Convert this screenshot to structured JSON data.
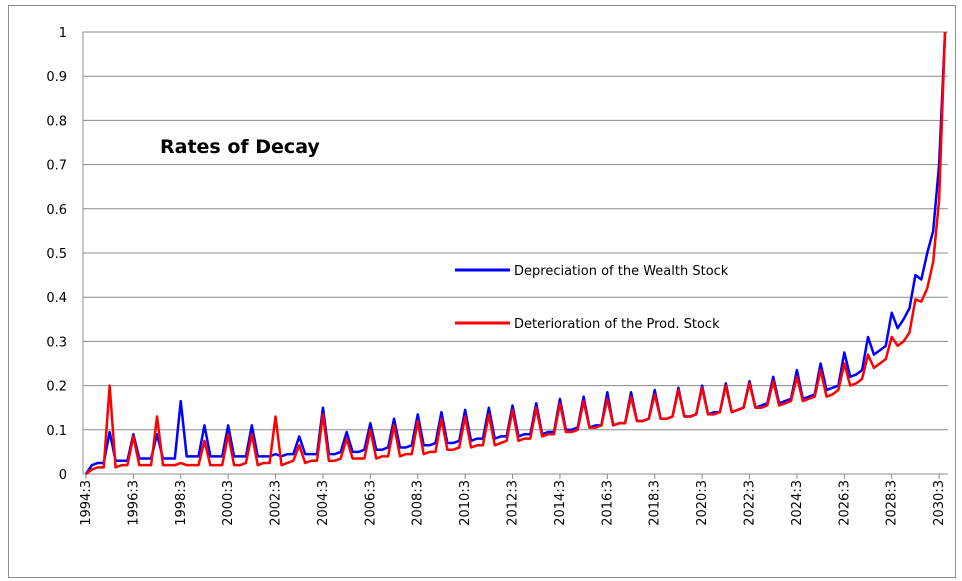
{
  "chart_data": {
    "type": "line",
    "title": "Rates of Decay",
    "categories": [
      "1994:3",
      null,
      null,
      null,
      null,
      null,
      null,
      null,
      "1996:3",
      null,
      null,
      null,
      null,
      null,
      null,
      null,
      "1998:3",
      null,
      null,
      null,
      null,
      null,
      null,
      null,
      "2000:3",
      null,
      null,
      null,
      null,
      null,
      null,
      null,
      "2002:3",
      null,
      null,
      null,
      null,
      null,
      null,
      null,
      "2004:3",
      null,
      null,
      null,
      null,
      null,
      null,
      null,
      "2006:3",
      null,
      null,
      null,
      null,
      null,
      null,
      null,
      "2008:3",
      null,
      null,
      null,
      null,
      null,
      null,
      null,
      "2010:3",
      null,
      null,
      null,
      null,
      null,
      null,
      null,
      "2012:3",
      null,
      null,
      null,
      null,
      null,
      null,
      null,
      "2014:3",
      null,
      null,
      null,
      null,
      null,
      null,
      null,
      "2016:3",
      null,
      null,
      null,
      null,
      null,
      null,
      null,
      "2018:3",
      null,
      null,
      null,
      null,
      null,
      null,
      null,
      "2020:3",
      null,
      null,
      null,
      null,
      null,
      null,
      null,
      "2022:3",
      null,
      null,
      null,
      null,
      null,
      null,
      null,
      "2024:3",
      null,
      null,
      null,
      null,
      null,
      null,
      null,
      "2026:3",
      null,
      null,
      null,
      null,
      null,
      null,
      null,
      "2028:3",
      null,
      null,
      null,
      null,
      null,
      null,
      null,
      "2030:3",
      null
    ],
    "series": [
      {
        "name": "Depreciation of the Wealth Stock",
        "color": "#0000ff",
        "values": [
          0,
          0.02,
          0.025,
          0.025,
          0.095,
          0.03,
          0.03,
          0.03,
          0.09,
          0.035,
          0.035,
          0.035,
          0.09,
          0.035,
          0.035,
          0.035,
          0.165,
          0.04,
          0.04,
          0.04,
          0.11,
          0.04,
          0.04,
          0.04,
          0.11,
          0.04,
          0.04,
          0.04,
          0.11,
          0.04,
          0.04,
          0.04,
          0.045,
          0.04,
          0.045,
          0.045,
          0.085,
          0.045,
          0.045,
          0.045,
          0.15,
          0.045,
          0.045,
          0.05,
          0.095,
          0.05,
          0.05,
          0.055,
          0.115,
          0.055,
          0.055,
          0.06,
          0.125,
          0.06,
          0.06,
          0.065,
          0.135,
          0.065,
          0.065,
          0.07,
          0.14,
          0.07,
          0.07,
          0.075,
          0.145,
          0.075,
          0.08,
          0.08,
          0.15,
          0.08,
          0.085,
          0.085,
          0.155,
          0.085,
          0.09,
          0.09,
          0.16,
          0.09,
          0.095,
          0.095,
          0.17,
          0.1,
          0.1,
          0.105,
          0.175,
          0.105,
          0.11,
          0.11,
          0.185,
          0.11,
          0.115,
          0.115,
          0.185,
          0.12,
          0.12,
          0.125,
          0.19,
          0.125,
          0.125,
          0.13,
          0.195,
          0.13,
          0.13,
          0.135,
          0.2,
          0.135,
          0.14,
          0.14,
          0.205,
          0.14,
          0.145,
          0.15,
          0.21,
          0.15,
          0.155,
          0.16,
          0.22,
          0.16,
          0.165,
          0.17,
          0.235,
          0.17,
          0.175,
          0.18,
          0.25,
          0.19,
          0.195,
          0.2,
          0.275,
          0.22,
          0.225,
          0.235,
          0.31,
          0.27,
          0.28,
          0.29,
          0.365,
          0.33,
          0.35,
          0.375,
          0.45,
          0.44,
          0.5,
          0.55,
          0.7,
          1.0
        ]
      },
      {
        "name": "Deterioration of the  Prod. Stock",
        "color": "#ff0000",
        "values": [
          0,
          0.01,
          0.015,
          0.015,
          0.2,
          0.015,
          0.02,
          0.02,
          0.085,
          0.02,
          0.02,
          0.02,
          0.13,
          0.02,
          0.02,
          0.02,
          0.025,
          0.02,
          0.02,
          0.02,
          0.075,
          0.02,
          0.02,
          0.02,
          0.09,
          0.02,
          0.02,
          0.025,
          0.09,
          0.02,
          0.025,
          0.025,
          0.13,
          0.02,
          0.025,
          0.03,
          0.065,
          0.025,
          0.03,
          0.03,
          0.135,
          0.03,
          0.03,
          0.035,
          0.08,
          0.035,
          0.035,
          0.035,
          0.1,
          0.035,
          0.04,
          0.04,
          0.11,
          0.04,
          0.045,
          0.045,
          0.12,
          0.045,
          0.05,
          0.05,
          0.125,
          0.055,
          0.055,
          0.06,
          0.13,
          0.06,
          0.065,
          0.065,
          0.135,
          0.065,
          0.07,
          0.075,
          0.145,
          0.075,
          0.08,
          0.08,
          0.15,
          0.085,
          0.09,
          0.09,
          0.16,
          0.095,
          0.095,
          0.1,
          0.165,
          0.105,
          0.105,
          0.11,
          0.17,
          0.11,
          0.115,
          0.115,
          0.175,
          0.12,
          0.12,
          0.125,
          0.18,
          0.125,
          0.125,
          0.13,
          0.19,
          0.13,
          0.13,
          0.135,
          0.195,
          0.135,
          0.135,
          0.14,
          0.2,
          0.14,
          0.145,
          0.15,
          0.205,
          0.15,
          0.15,
          0.155,
          0.21,
          0.155,
          0.16,
          0.165,
          0.22,
          0.165,
          0.17,
          0.175,
          0.235,
          0.175,
          0.18,
          0.19,
          0.25,
          0.2,
          0.205,
          0.215,
          0.27,
          0.24,
          0.25,
          0.26,
          0.31,
          0.29,
          0.3,
          0.32,
          0.395,
          0.39,
          0.42,
          0.48,
          0.62,
          1.0
        ]
      }
    ],
    "ylim": [
      0,
      1
    ],
    "yticks": [
      0,
      0.1,
      0.2,
      0.3,
      0.4,
      0.5,
      0.6,
      0.7,
      0.8,
      0.9,
      1
    ],
    "grid": true
  }
}
